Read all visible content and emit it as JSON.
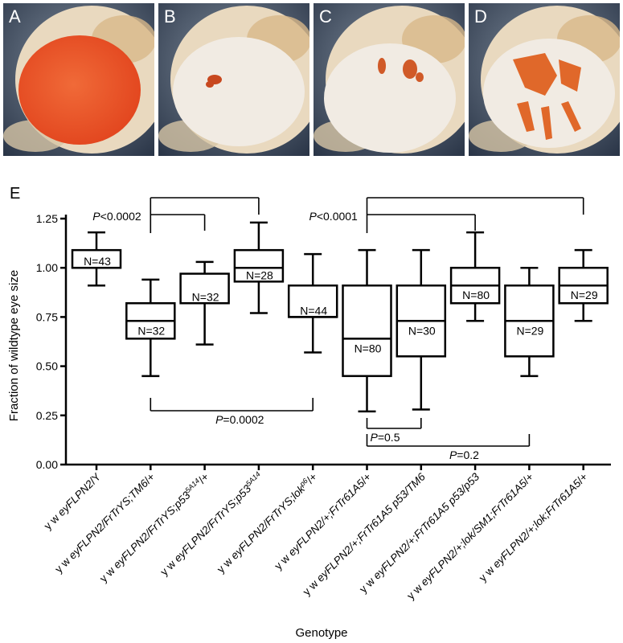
{
  "photo_panels": [
    {
      "letter": "A",
      "eye_color": "#e2451e",
      "description": "full red eye"
    },
    {
      "letter": "B",
      "eye_color": "#c8481f",
      "description": "small eye with tiny red patch"
    },
    {
      "letter": "C",
      "eye_color": "#d05a28",
      "description": "white eye with small red spots"
    },
    {
      "letter": "D",
      "eye_color": "#e0682a",
      "description": "eye with red streak patches"
    }
  ],
  "chart_data": {
    "type": "boxplot",
    "panel_label": "E",
    "xlabel": "Genotype",
    "ylabel": "Fraction of wildtype eye size",
    "ylim": [
      0,
      1.25
    ],
    "yticks": [
      "0.00",
      "0.25",
      "0.50",
      "0.75",
      "1.00",
      "1.25"
    ],
    "categories": [
      [
        {
          "t": "y w ",
          "i": false
        },
        {
          "t": "eyFLPN2",
          "i": true
        },
        {
          "t": "/Y",
          "i": false
        }
      ],
      [
        {
          "t": "y w ",
          "i": false
        },
        {
          "t": "eyFLPN2/FrTrYS;TM6",
          "i": true
        },
        {
          "t": "/+",
          "i": false
        }
      ],
      [
        {
          "t": "y w ",
          "i": false
        },
        {
          "t": "eyFLPN2/FrTrYS;p53",
          "i": true
        },
        {
          "t": "5A14",
          "i": true,
          "sup": true
        },
        {
          "t": "/+",
          "i": false
        }
      ],
      [
        {
          "t": "y w ",
          "i": false
        },
        {
          "t": "eyFLPN2/FrTrYS;p53",
          "i": true
        },
        {
          "t": "5A14",
          "i": true,
          "sup": true
        }
      ],
      [
        {
          "t": "y w ",
          "i": false
        },
        {
          "t": "eyFLPN2/FrTrYS;lok",
          "i": true
        },
        {
          "t": "p6",
          "i": true,
          "sup": true
        },
        {
          "t": "/+",
          "i": false
        }
      ],
      [
        {
          "t": "y w ",
          "i": false
        },
        {
          "t": "eyFLPN2/+;FrTr61A5",
          "i": true
        },
        {
          "t": "/+",
          "i": false
        }
      ],
      [
        {
          "t": "y w ",
          "i": false
        },
        {
          "t": "eyFLPN2/+;FrTr61A5 p53/TM6",
          "i": true
        }
      ],
      [
        {
          "t": "y w ",
          "i": false
        },
        {
          "t": "eyFLPN2/+;FrTr61A5 p53/p53",
          "i": true
        }
      ],
      [
        {
          "t": "y w ",
          "i": false
        },
        {
          "t": "eyFLPN2/+;lok/SM1;FrTr61A5",
          "i": true
        },
        {
          "t": "/+",
          "i": false
        }
      ],
      [
        {
          "t": "y w ",
          "i": false
        },
        {
          "t": "eyFLPN2/+;lok;FrTr61A5",
          "i": true
        },
        {
          "t": "/+",
          "i": false
        }
      ]
    ],
    "boxes": [
      {
        "min": 0.91,
        "q1": 1.0,
        "median": 1.0,
        "q3": 1.09,
        "max": 1.18,
        "label": "N=43"
      },
      {
        "min": 0.45,
        "q1": 0.64,
        "median": 0.73,
        "q3": 0.82,
        "max": 0.94,
        "label": "N=32"
      },
      {
        "min": 0.61,
        "q1": 0.82,
        "median": 0.82,
        "q3": 0.97,
        "max": 1.03,
        "label": "N=32"
      },
      {
        "min": 0.77,
        "q1": 0.93,
        "median": 1.0,
        "q3": 1.09,
        "max": 1.23,
        "label": "N=28"
      },
      {
        "min": 0.57,
        "q1": 0.75,
        "median": 0.75,
        "q3": 0.91,
        "max": 1.07,
        "label": "N=44"
      },
      {
        "min": 0.27,
        "q1": 0.45,
        "median": 0.64,
        "q3": 0.91,
        "max": 1.09,
        "label": "N=80"
      },
      {
        "min": 0.28,
        "q1": 0.55,
        "median": 0.73,
        "q3": 0.91,
        "max": 1.09,
        "label": "N=30"
      },
      {
        "min": 0.73,
        "q1": 0.82,
        "median": 0.91,
        "q3": 1.0,
        "max": 1.18,
        "label": "N=80"
      },
      {
        "min": 0.45,
        "q1": 0.55,
        "median": 0.73,
        "q3": 0.91,
        "max": 1.0,
        "label": "N=29"
      },
      {
        "min": 0.73,
        "q1": 0.82,
        "median": 0.91,
        "q3": 1.0,
        "max": 1.09,
        "label": "N=29"
      }
    ],
    "comparisons": [
      {
        "label_italic": "P",
        "label_rest": "<0.0002",
        "from": 1,
        "to": [
          2,
          3
        ],
        "level": 1.33,
        "side": "top"
      },
      {
        "label_italic": "P",
        "label_rest": "<0.0001",
        "from": 5,
        "to": [
          7,
          9
        ],
        "level": 1.33,
        "side": "top"
      },
      {
        "label_italic": "P",
        "label_rest": "=0.0002",
        "from": 1,
        "to": [
          4
        ],
        "level": 0.12,
        "side": "bottom"
      },
      {
        "label_italic": "P",
        "label_rest": "=0.5",
        "from": 5,
        "to": [
          6
        ],
        "level": -0.04,
        "side": "bottom"
      },
      {
        "label_italic": "P",
        "label_rest": "=0.2",
        "from": 5,
        "to": [
          8
        ],
        "level": -0.06,
        "side": "bottom2"
      }
    ]
  }
}
